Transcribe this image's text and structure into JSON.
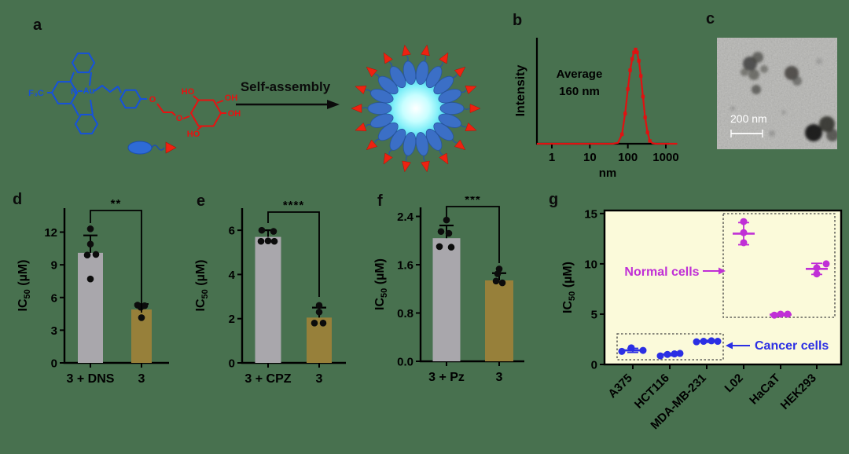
{
  "figure": {
    "background_color": "#48714f"
  },
  "panels": {
    "a": {
      "letter": "a",
      "arrow_label": "Self-assembly",
      "atoms": {
        "f3c": "F₃C",
        "n": "N",
        "au": "Au",
        "o1": "O",
        "o2": "O",
        "ho_top": "HO",
        "oh1": "OH",
        "oh2": "OH",
        "ho_bottom": "HO"
      },
      "structure_colors": {
        "metal_complex": "#1551dd",
        "glycan": "#e81111"
      },
      "micelle": {
        "petal_count": 18,
        "core_colors": [
          "#ffffff",
          "#c8feff",
          "#7deef8",
          "#2fc3ec"
        ],
        "petal_color": "#3b6fc6",
        "petal_stroke": "#27559f",
        "triangle_color": "#ee2211",
        "triangle_stroke": "#b01205"
      }
    },
    "b": {
      "letter": "b"
    },
    "c": {
      "letter": "c",
      "scale_bar_label": "200 nm"
    },
    "d": {
      "letter": "d"
    },
    "e": {
      "letter": "e"
    },
    "f": {
      "letter": "f"
    },
    "g": {
      "letter": "g"
    }
  },
  "chart_data": [
    {
      "panel": "b",
      "type": "line",
      "xscale": "log",
      "xlabel": "nm",
      "ylabel": "Intensity",
      "annotation": [
        "Average",
        "160 nm"
      ],
      "xticks": [
        1,
        10,
        100,
        1000
      ],
      "xlim": [
        0.4,
        2000
      ],
      "ylim": [
        0,
        1.08
      ],
      "series": [
        {
          "name": "size distribution",
          "color": "#e01111",
          "x": [
            0.4,
            1,
            5,
            10,
            20,
            40,
            55,
            70,
            85,
            100,
            115,
            130,
            145,
            160,
            175,
            195,
            220,
            250,
            285,
            330,
            380,
            450,
            550,
            900,
            2000
          ],
          "y": [
            0,
            0,
            0,
            0,
            0,
            0,
            0.01,
            0.1,
            0.32,
            0.58,
            0.78,
            0.9,
            0.97,
            1.0,
            0.97,
            0.88,
            0.72,
            0.5,
            0.28,
            0.12,
            0.03,
            0.005,
            0,
            0,
            0
          ]
        }
      ]
    },
    {
      "panel": "d",
      "type": "bar",
      "ylabel": "IC50 (µM)",
      "significance": "**",
      "categories": [
        "3 + DNS",
        "3"
      ],
      "values": [
        10.1,
        4.9
      ],
      "errors": [
        1.6,
        0.5
      ],
      "bar_colors": [
        "#a9a7ac",
        "#97803a"
      ],
      "yticks": [
        0,
        3,
        6,
        9,
        12
      ],
      "ylim": [
        0,
        14.2
      ],
      "points": [
        [
          [
            12.3,
            0
          ],
          [
            10.9,
            0
          ],
          [
            9.95,
            7
          ],
          [
            9.9,
            -4
          ],
          [
            7.7,
            0
          ]
        ],
        [
          [
            5.3,
            -5
          ],
          [
            5.25,
            4
          ],
          [
            5.1,
            -1
          ],
          [
            4.15,
            0
          ]
        ]
      ]
    },
    {
      "panel": "e",
      "type": "bar",
      "ylabel": "IC50 (µM)",
      "significance": "****",
      "categories": [
        "3 + CPZ",
        "3"
      ],
      "values": [
        5.7,
        2.05
      ],
      "errors": [
        0.3,
        0.45
      ],
      "bar_colors": [
        "#a9a7ac",
        "#97803a"
      ],
      "yticks": [
        0,
        2,
        4,
        6
      ],
      "ylim": [
        0,
        7.0
      ],
      "points": [
        [
          [
            6.0,
            -8
          ],
          [
            5.95,
            7
          ],
          [
            5.5,
            -9
          ],
          [
            5.52,
            0
          ],
          [
            5.5,
            8
          ]
        ],
        [
          [
            2.6,
            0
          ],
          [
            2.3,
            0
          ],
          [
            1.8,
            -6
          ],
          [
            1.8,
            5
          ]
        ]
      ]
    },
    {
      "panel": "f",
      "type": "bar",
      "ylabel": "IC50 (µM)",
      "significance": "***",
      "categories": [
        "3 + Pz",
        "3"
      ],
      "values": [
        2.04,
        1.34
      ],
      "errors": [
        0.21,
        0.12
      ],
      "bar_colors": [
        "#a9a7ac",
        "#97803a"
      ],
      "yticks": [
        "0.0",
        "0.8",
        "1.6",
        "2.4"
      ],
      "ylim": [
        0,
        2.55
      ],
      "points": [
        [
          [
            2.34,
            0
          ],
          [
            2.15,
            -7
          ],
          [
            2.12,
            3
          ],
          [
            1.9,
            -9
          ],
          [
            1.89,
            6
          ]
        ],
        [
          [
            1.53,
            0
          ],
          [
            1.45,
            -2
          ],
          [
            1.33,
            -4
          ],
          [
            1.3,
            4
          ]
        ]
      ]
    },
    {
      "panel": "g",
      "type": "scatter",
      "ylabel": "IC50 (µM)",
      "categories": [
        "A375",
        "HCT116",
        "MDA-MB-231",
        "L02",
        "HaCaT",
        "HEK293"
      ],
      "groups": [
        "cancer",
        "cancer",
        "cancer",
        "normal",
        "normal",
        "normal"
      ],
      "means": [
        1.4,
        1.0,
        2.3,
        13.0,
        4.95,
        9.5
      ],
      "errors": [
        0.2,
        0.12,
        0.1,
        1.1,
        0.12,
        0.55
      ],
      "points": [
        [
          [
            1.3,
            -14
          ],
          [
            1.65,
            -2
          ],
          [
            1.4,
            13
          ]
        ],
        [
          [
            0.85,
            -12
          ],
          [
            1.0,
            -3
          ],
          [
            1.05,
            6
          ],
          [
            1.1,
            13
          ]
        ],
        [
          [
            2.25,
            -13
          ],
          [
            2.3,
            -4
          ],
          [
            2.35,
            6
          ],
          [
            2.3,
            14
          ]
        ],
        [
          [
            14.2,
            0
          ],
          [
            13.1,
            0
          ],
          [
            12.1,
            0
          ]
        ],
        [
          [
            4.9,
            -8
          ],
          [
            5.0,
            0
          ],
          [
            5.0,
            9
          ]
        ],
        [
          [
            10.0,
            12
          ],
          [
            9.6,
            0
          ],
          [
            9.0,
            0
          ]
        ]
      ],
      "yticks": [
        0,
        5,
        10,
        15
      ],
      "ylim": [
        0,
        15.3
      ],
      "group_colors": {
        "cancer": "#2b2fe4",
        "normal": "#c02fd6"
      },
      "plot_background": "#fbfada",
      "annotations": [
        {
          "text": "Normal cells",
          "group": "normal"
        },
        {
          "text": "Cancer cells",
          "group": "cancer"
        }
      ]
    }
  ]
}
